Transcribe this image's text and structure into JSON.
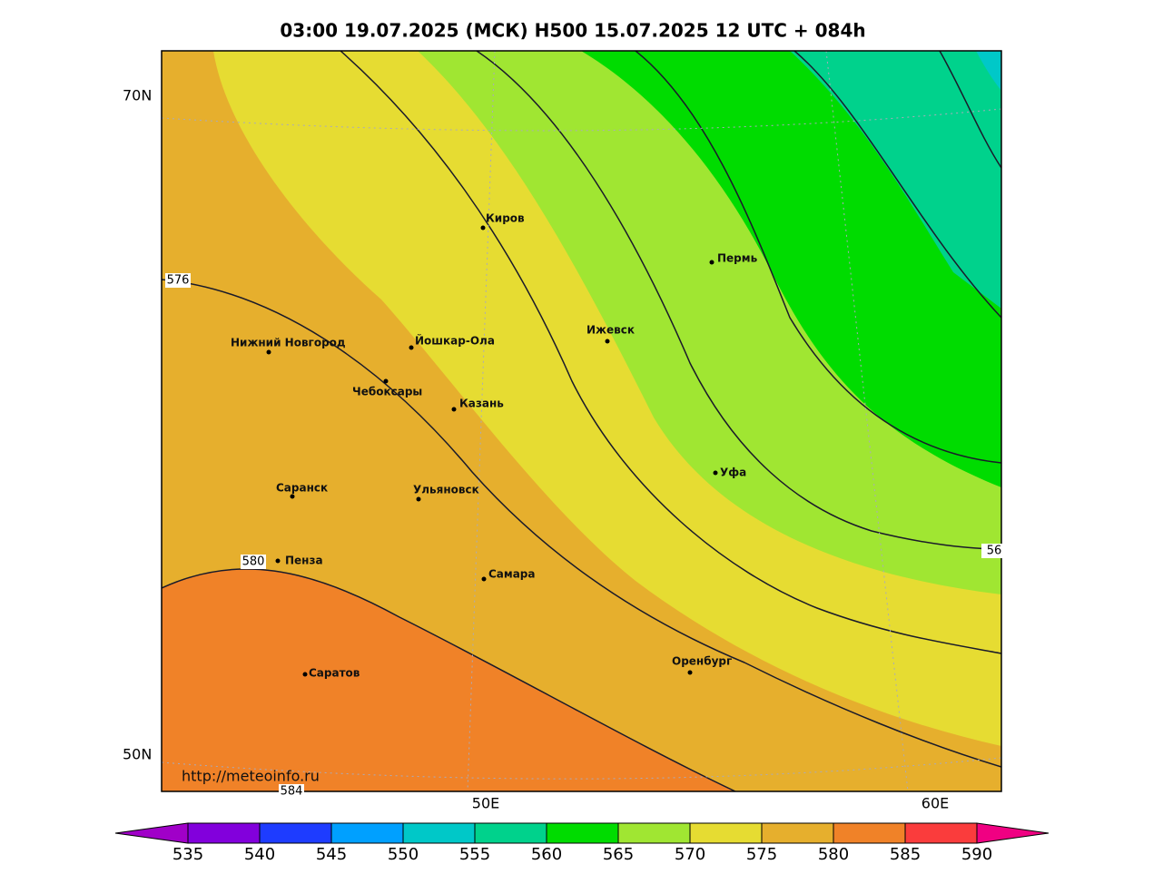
{
  "header": {
    "title": "03:00 19.07.2025 (МСК) H500  15.07.2025 12 UTC + 084h"
  },
  "map": {
    "lat_labels": [
      "70N",
      "50N"
    ],
    "lon_labels": [
      "50E",
      "60E"
    ],
    "cities": [
      "Киров",
      "Пермь",
      "Нижний Новгород",
      "Йошкар-Ола",
      "Ижевск",
      "Чебоксары",
      "Казань",
      "Уфа",
      "Саранск",
      "Ульяновск",
      "Пенза",
      "Самара",
      "Оренбург",
      "Саратов"
    ],
    "contour_labels": [
      "576",
      "580",
      "56",
      "584"
    ],
    "source": "http://meteoinfo.ru"
  },
  "colorbar": {
    "labels": [
      535,
      540,
      545,
      550,
      555,
      560,
      565,
      570,
      575,
      580,
      585,
      590
    ],
    "colors": [
      "#a000c8",
      "#8200dc",
      "#1e3cff",
      "#00a0ff",
      "#00c8c8",
      "#00d28c",
      "#00dc00",
      "#a0e632",
      "#e6dc32",
      "#e6af2d",
      "#f08228",
      "#fa3c3c",
      "#f00082"
    ]
  }
}
